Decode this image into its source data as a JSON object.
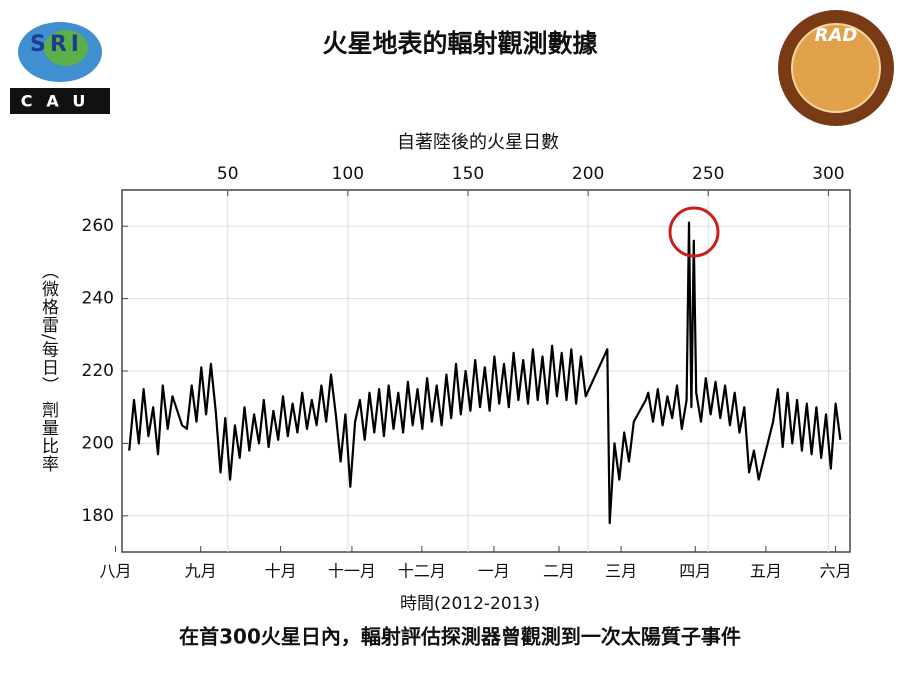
{
  "chart_data": {
    "type": "line",
    "title": "火星地表的輻射觀測數據",
    "xlabel": "自著陸後的火星日數",
    "x2label": "時間(2012-2013)",
    "ylabel": "（微格雷/每日） 劑量比率",
    "caption": "在首300火星日內，輻射評估探測器曾觀測到一次太陽質子事件",
    "xlim": [
      6,
      309
    ],
    "xticks": [
      50,
      100,
      150,
      200,
      250,
      300
    ],
    "month_ticks": [
      {
        "value": 3.3,
        "label": "八月"
      },
      {
        "value": 38.75,
        "label": "九月"
      },
      {
        "value": 72,
        "label": "十月"
      },
      {
        "value": 101.7,
        "label": "十一月"
      },
      {
        "value": 130.8,
        "label": "十二月"
      },
      {
        "value": 160.8,
        "label": "一月"
      },
      {
        "value": 187.9,
        "label": "二月"
      },
      {
        "value": 213.75,
        "label": "三月"
      },
      {
        "value": 244.6,
        "label": "四月"
      },
      {
        "value": 274,
        "label": "五月"
      },
      {
        "value": 303,
        "label": "六月"
      }
    ],
    "ylim": [
      170,
      270
    ],
    "yticks": [
      180,
      200,
      220,
      240,
      260
    ],
    "grid": true,
    "color": "#000000",
    "x": [
      9,
      11,
      13,
      15,
      17,
      19,
      21,
      23,
      25,
      27,
      31,
      33,
      35,
      37,
      39,
      41,
      43,
      45,
      47,
      49,
      51,
      53,
      55,
      57,
      59,
      61,
      63,
      65,
      67,
      69,
      71,
      73,
      75,
      77,
      79,
      81,
      83,
      85,
      87,
      89,
      91,
      93,
      95,
      97,
      99,
      101,
      103,
      105,
      107,
      109,
      111,
      113,
      115,
      117,
      119,
      121,
      123,
      125,
      127,
      129,
      131,
      133,
      135,
      137,
      139,
      141,
      143,
      145,
      147,
      149,
      151,
      153,
      155,
      157,
      159,
      161,
      163,
      165,
      167,
      169,
      171,
      173,
      175,
      177,
      179,
      181,
      183,
      185,
      187,
      189,
      191,
      193,
      195,
      197,
      199,
      208,
      209,
      211,
      213,
      215,
      217,
      219,
      224,
      225,
      227,
      229,
      231,
      233,
      235,
      237,
      239,
      241,
      242,
      243,
      244,
      245,
      247,
      249,
      251,
      253,
      255,
      257,
      259,
      261,
      263,
      265,
      267,
      269,
      271,
      277,
      279,
      281,
      283,
      285,
      287,
      289,
      291,
      293,
      295,
      297,
      299,
      301,
      303,
      305
    ],
    "values": [
      198,
      212,
      200,
      215,
      202,
      210,
      197,
      216,
      204,
      213,
      205,
      204,
      216,
      206,
      221,
      208,
      222,
      209,
      192,
      207,
      190,
      205,
      196,
      210,
      198,
      208,
      200,
      212,
      199,
      209,
      201,
      213,
      202,
      211,
      203,
      214,
      204,
      212,
      205,
      216,
      206,
      219,
      208,
      195,
      208,
      188,
      206,
      212,
      201,
      214,
      203,
      215,
      202,
      216,
      204,
      214,
      203,
      217,
      205,
      215,
      204,
      218,
      206,
      216,
      205,
      219,
      207,
      222,
      208,
      220,
      209,
      223,
      210,
      221,
      209,
      224,
      211,
      222,
      210,
      225,
      212,
      223,
      211,
      226,
      212,
      224,
      211,
      227,
      213,
      225,
      212,
      226,
      211,
      224,
      213,
      226,
      178,
      200,
      190,
      203,
      195,
      206,
      212,
      214,
      206,
      215,
      205,
      213,
      207,
      216,
      204,
      212,
      261,
      210,
      256,
      214,
      206,
      218,
      208,
      217,
      207,
      216,
      205,
      214,
      203,
      210,
      192,
      198,
      190,
      206,
      215,
      199,
      214,
      200,
      212,
      198,
      211,
      197,
      210,
      196,
      208,
      193,
      211,
      201
    ]
  },
  "logos": {
    "sri": "SRI",
    "cau": "CAU",
    "rad": "RAD"
  }
}
